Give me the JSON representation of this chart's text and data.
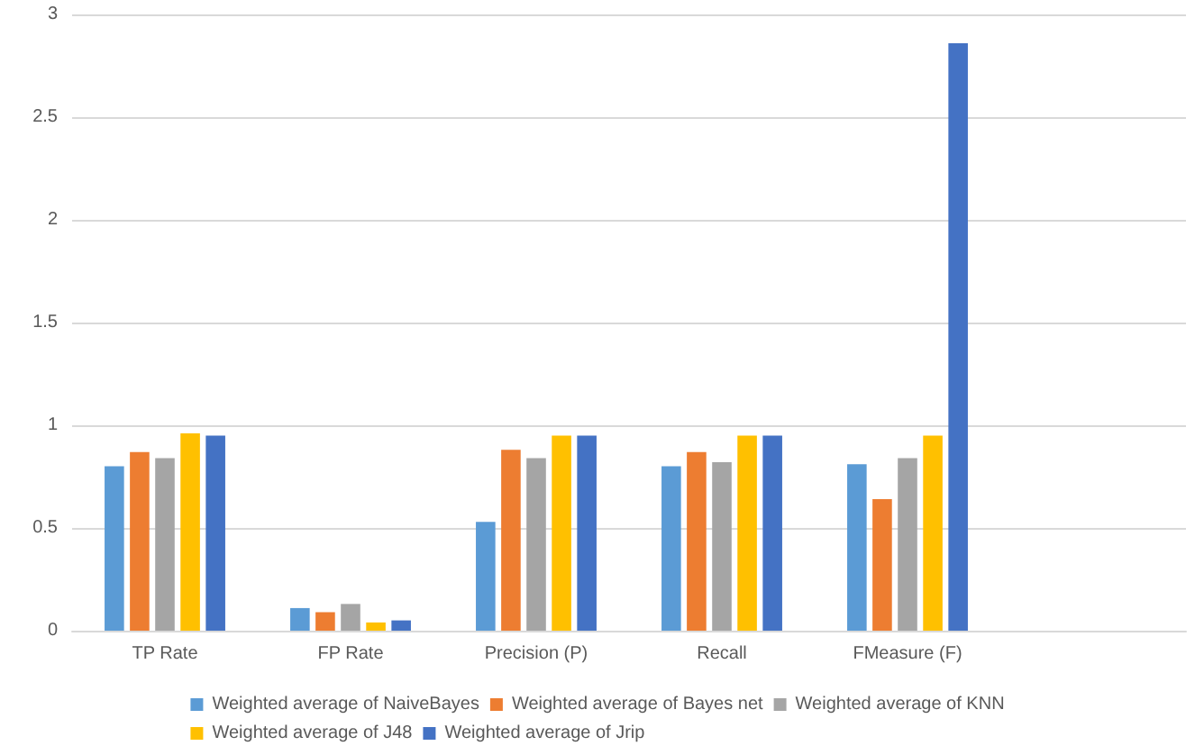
{
  "chart_data": {
    "type": "bar",
    "categories": [
      "TP Rate",
      "FP Rate",
      "Precision (P)",
      "Recall",
      "FMeasure (F)",
      null
    ],
    "series": [
      {
        "name": "Weighted average of NaiveBayes",
        "color": "#5b9bd5",
        "values": [
          0.8,
          0.11,
          0.53,
          0.8,
          0.81,
          null
        ]
      },
      {
        "name": "Weighted average of Bayes net",
        "color": "#ed7d31",
        "values": [
          0.87,
          0.09,
          0.88,
          0.87,
          0.64,
          null
        ]
      },
      {
        "name": "Weighted average of KNN",
        "color": "#a5a5a5",
        "values": [
          0.84,
          0.13,
          0.84,
          0.82,
          0.84,
          null
        ]
      },
      {
        "name": "Weighted average of J48",
        "color": "#ffc000",
        "values": [
          0.96,
          0.04,
          0.95,
          0.95,
          0.95,
          null
        ]
      },
      {
        "name": "Weighted average of Jrip",
        "color": "#4472c4",
        "values": [
          0.95,
          0.05,
          0.95,
          0.95,
          2.86,
          null
        ]
      }
    ],
    "ylim": [
      0,
      3
    ],
    "yticks": [
      0,
      0.5,
      1,
      1.5,
      2,
      2.5,
      3
    ],
    "grid": "y",
    "legend": "bottom"
  }
}
